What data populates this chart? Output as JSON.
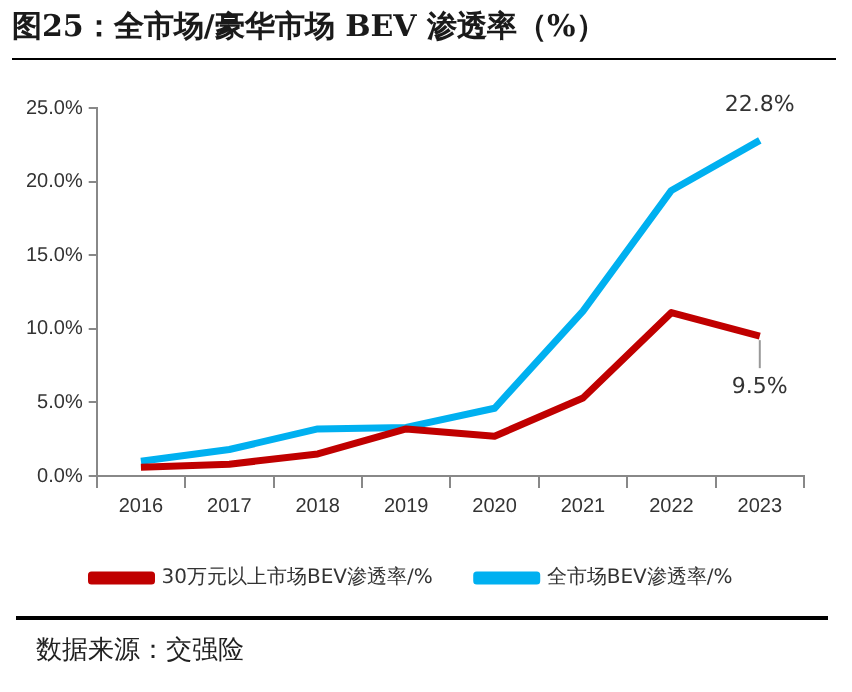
{
  "chart_data": {
    "type": "line",
    "title": "图25：全市场/豪华市场 BEV 渗透率（%）",
    "categories": [
      "2016",
      "2017",
      "2018",
      "2019",
      "2020",
      "2021",
      "2022",
      "2023"
    ],
    "series": [
      {
        "name": "30万元以上市场BEV渗透率/%",
        "color": "#c00000",
        "values": [
          0.6,
          0.8,
          1.5,
          3.2,
          2.7,
          5.3,
          11.1,
          9.5
        ],
        "value_labels": [
          null,
          null,
          null,
          null,
          null,
          null,
          null,
          "9.5%"
        ]
      },
      {
        "name": "全市场BEV渗透率/%",
        "color": "#00b0f0",
        "values": [
          1.0,
          1.8,
          3.2,
          3.3,
          4.6,
          11.2,
          19.4,
          22.8
        ],
        "value_labels": [
          null,
          null,
          null,
          null,
          null,
          null,
          null,
          "22.8%"
        ]
      }
    ],
    "ylim": [
      0,
      25
    ],
    "yticks": [
      {
        "value": 0,
        "label": "0.0%"
      },
      {
        "value": 5,
        "label": "5.0%"
      },
      {
        "value": 10,
        "label": "10.0%"
      },
      {
        "value": 15,
        "label": "15.0%"
      },
      {
        "value": 20,
        "label": "20.0%"
      },
      {
        "value": 25,
        "label": "25.0%"
      }
    ],
    "grid": false,
    "legend": "bottom",
    "marker": "none",
    "line_style": "solid",
    "annotations": [
      "数据来源：交强险"
    ]
  }
}
